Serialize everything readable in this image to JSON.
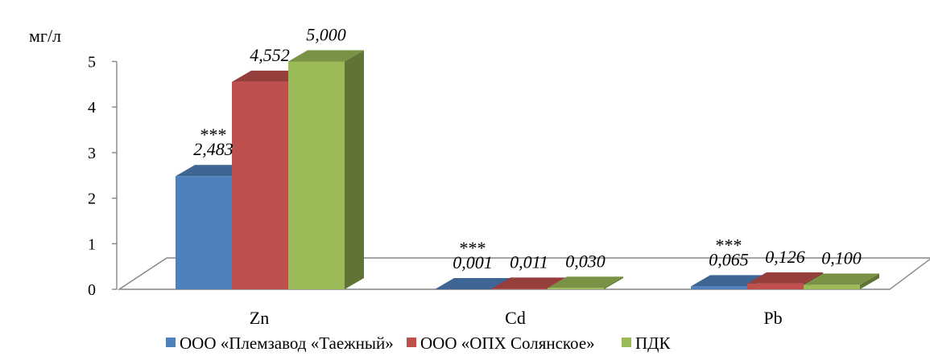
{
  "chart_data": {
    "type": "bar",
    "ylabel": "мг/л",
    "ylim": [
      0,
      5
    ],
    "yticks": [
      "0",
      "1",
      "2",
      "3",
      "4",
      "5"
    ],
    "categories": [
      "Zn",
      "Cd",
      "Pb"
    ],
    "series": [
      {
        "name": "ООО «Племзавод «Таежный»",
        "color": "#4F81BD",
        "values": [
          2.483,
          0.001,
          0.065
        ],
        "labels": [
          "2,483",
          "0,001",
          "0,065"
        ],
        "significance": [
          "***",
          "***",
          "***"
        ]
      },
      {
        "name": "ООО «ОПХ Солянское»",
        "color": "#C0504D",
        "values": [
          4.552,
          0.011,
          0.126
        ],
        "labels": [
          "4,552",
          "0,011",
          "0,126"
        ],
        "significance": [
          "",
          "",
          ""
        ]
      },
      {
        "name": "ПДК",
        "color": "#9BBB59",
        "values": [
          5.0,
          0.03,
          0.1
        ],
        "labels": [
          "5,000",
          "0,030",
          "0,100"
        ],
        "significance": [
          "",
          "",
          ""
        ]
      }
    ],
    "legend_position": "bottom",
    "grid": false
  }
}
